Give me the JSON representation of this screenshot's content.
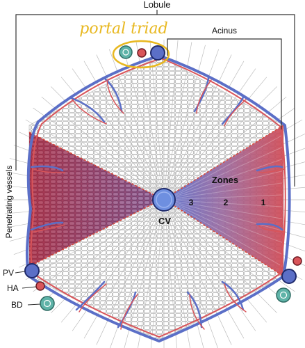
{
  "labels": {
    "lobule": "Lobule",
    "acinus": "Acinus",
    "portal_triad": "portal triad",
    "penetrating_vessels": "Penetrating vessels",
    "zones": "Zones",
    "zone_3": "3",
    "zone_2": "2",
    "zone_1": "1",
    "cv": "CV",
    "pv": "PV",
    "ha": "HA",
    "bd": "BD"
  },
  "colors": {
    "portal_vein": "#5b6fc7",
    "hepatic_artery": "#d9555a",
    "bile_duct": "#5fb3a8",
    "central_vein": "#6e8fe0",
    "annotation": "#e8b820",
    "zone_red": "#c9424f",
    "zone_blue": "#5a6fcf"
  }
}
